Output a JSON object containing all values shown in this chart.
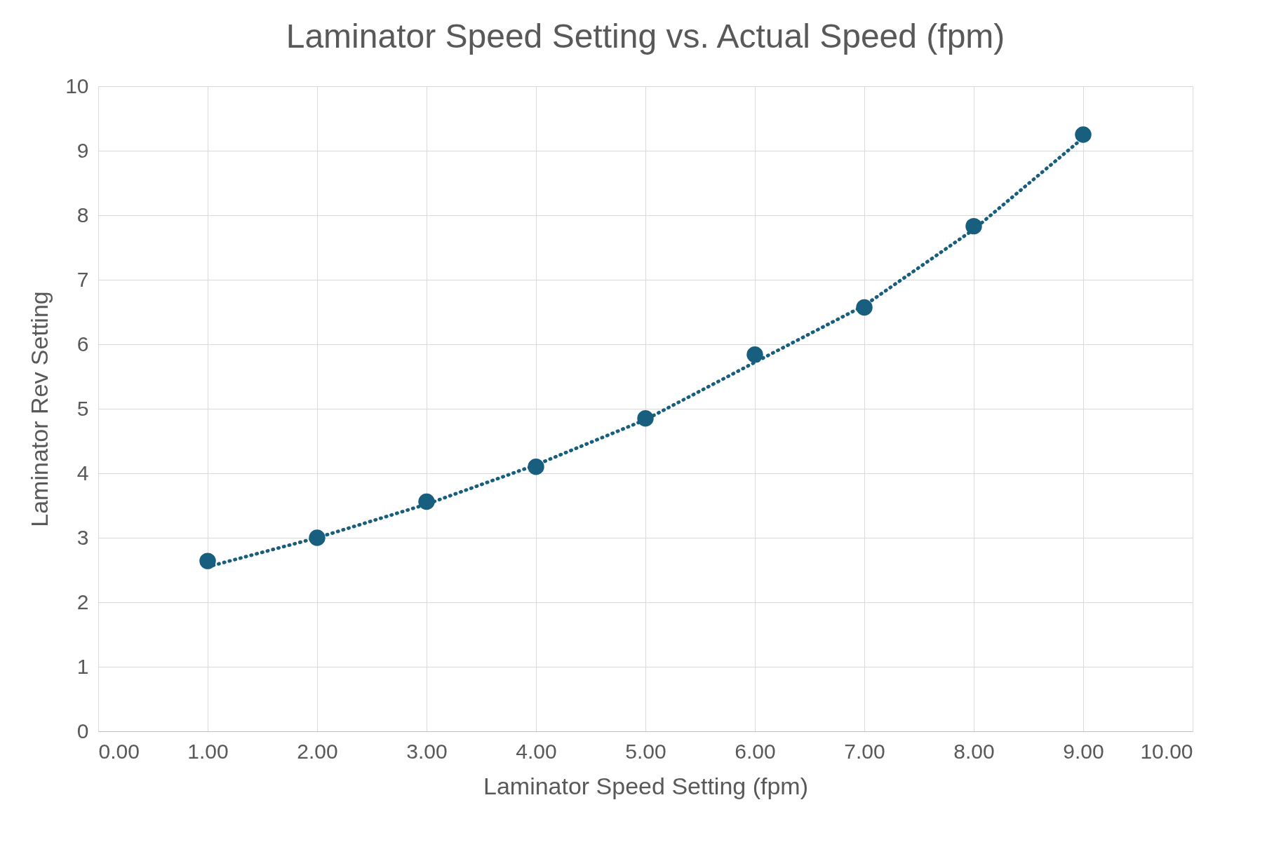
{
  "chart_data": {
    "type": "scatter",
    "title": "Laminator Speed Setting vs. Actual Speed (fpm)",
    "xlabel": "Laminator Speed Setting (fpm)",
    "ylabel": "Laminator Rev Setting",
    "x": [
      1,
      2,
      3,
      4,
      5,
      6,
      7,
      8,
      9
    ],
    "series": [
      {
        "type": "scatter",
        "color": "#175e7f",
        "marker": "circle",
        "values": [
          2.64,
          3.0,
          3.56,
          4.1,
          4.85,
          5.84,
          6.57,
          7.83,
          9.25
        ]
      },
      {
        "type": "line",
        "color": "#175e7f",
        "marker": "none",
        "line_style": "dotted",
        "x": [
          1,
          2,
          3,
          4,
          5,
          6,
          7,
          8,
          9
        ],
        "values": [
          2.55,
          3.0,
          3.52,
          4.13,
          4.83,
          5.72,
          6.6,
          7.78,
          9.2
        ]
      }
    ],
    "xlim": [
      0,
      10
    ],
    "ylim": [
      0,
      10
    ],
    "xticks": [
      {
        "value": 0,
        "label": "0.00"
      },
      {
        "value": 1,
        "label": "1.00"
      },
      {
        "value": 2,
        "label": "2.00"
      },
      {
        "value": 3,
        "label": "3.00"
      },
      {
        "value": 4,
        "label": "4.00"
      },
      {
        "value": 5,
        "label": "5.00"
      },
      {
        "value": 6,
        "label": "6.00"
      },
      {
        "value": 7,
        "label": "7.00"
      },
      {
        "value": 8,
        "label": "8.00"
      },
      {
        "value": 9,
        "label": "9.00"
      },
      {
        "value": 10,
        "label": "10.00"
      }
    ],
    "yticks": [
      0,
      1,
      2,
      3,
      4,
      5,
      6,
      7,
      8,
      9,
      10
    ],
    "grid": true
  }
}
